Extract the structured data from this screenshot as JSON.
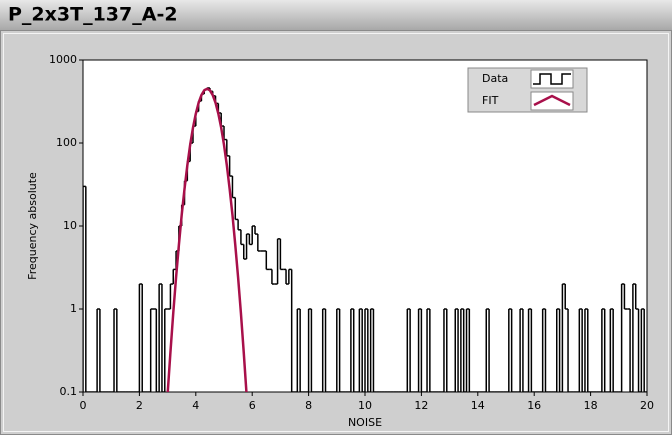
{
  "header": {
    "title": "P_2x3T_137_A-2"
  },
  "chart_data": {
    "type": "histogram",
    "xlabel": "NOISE",
    "ylabel": "Frequency absolute",
    "xlim": [
      0,
      20
    ],
    "xticks": [
      0,
      2,
      4,
      6,
      8,
      10,
      12,
      14,
      16,
      18,
      20
    ],
    "ylim": [
      0.1,
      1000
    ],
    "yticks": [
      0.1,
      1,
      10,
      100,
      1000
    ],
    "log_y": true,
    "legend": "top-right",
    "bins": [
      0,
      0.1,
      0.2,
      0.3,
      0.4,
      0.5,
      0.6,
      0.7,
      0.8,
      0.9,
      1,
      1.1,
      1.2,
      1.3,
      1.4,
      1.5,
      1.6,
      1.7,
      1.8,
      1.9,
      2,
      2.1,
      2.2,
      2.3,
      2.4,
      2.5,
      2.6,
      2.7,
      2.8,
      2.9,
      3,
      3.1,
      3.2,
      3.3,
      3.4,
      3.5,
      3.6,
      3.7,
      3.8,
      3.9,
      4,
      4.1,
      4.2,
      4.3,
      4.4,
      4.5,
      4.6,
      4.7,
      4.8,
      4.9,
      5,
      5.1,
      5.2,
      5.3,
      5.4,
      5.5,
      5.6,
      5.7,
      5.8,
      5.9,
      6,
      6.1,
      6.2,
      6.3,
      6.4,
      6.5,
      6.6,
      6.7,
      6.8,
      6.9,
      7,
      7.1,
      7.2,
      7.3,
      7.4,
      7.5,
      7.6,
      7.7,
      7.8,
      7.9,
      8,
      8.1,
      8.2,
      8.3,
      8.4,
      8.5,
      8.6,
      8.7,
      8.8,
      8.9,
      9,
      9.1,
      9.2,
      9.3,
      9.4,
      9.5,
      9.6,
      9.7,
      9.8,
      9.9,
      10,
      10.1,
      10.2,
      10.3,
      10.4,
      10.5,
      10.6,
      10.7,
      10.8,
      10.9,
      11,
      11.1,
      11.2,
      11.3,
      11.4,
      11.5,
      11.6,
      11.7,
      11.8,
      11.9,
      12,
      12.1,
      12.2,
      12.3,
      12.4,
      12.5,
      12.6,
      12.7,
      12.8,
      12.9,
      13,
      13.1,
      13.2,
      13.3,
      13.4,
      13.5,
      13.6,
      13.7,
      13.8,
      13.9,
      14,
      14.1,
      14.2,
      14.3,
      14.4,
      14.5,
      14.6,
      14.7,
      14.8,
      14.9,
      15,
      15.1,
      15.2,
      15.3,
      15.4,
      15.5,
      15.6,
      15.7,
      15.8,
      15.9,
      16,
      16.1,
      16.2,
      16.3,
      16.4,
      16.5,
      16.6,
      16.7,
      16.8,
      16.9,
      17,
      17.1,
      17.2,
      17.3,
      17.4,
      17.5,
      17.6,
      17.7,
      17.8,
      17.9,
      18,
      18.1,
      18.2,
      18.3,
      18.4,
      18.5,
      18.6,
      18.7,
      18.8,
      18.9,
      19,
      19.1,
      19.2,
      19.3,
      19.4,
      19.5,
      19.6,
      19.7,
      19.8,
      19.9,
      20
    ],
    "series": [
      {
        "name": "Data",
        "color": "#000000",
        "values": [
          30,
          0,
          0,
          0,
          0,
          1,
          0,
          0,
          0,
          0,
          0,
          1,
          0,
          0,
          0,
          0,
          0,
          0,
          0,
          0,
          2,
          0,
          0,
          0,
          1,
          1,
          0,
          2,
          0,
          1,
          1,
          2,
          3,
          5,
          10,
          18,
          35,
          60,
          100,
          160,
          240,
          320,
          390,
          440,
          460,
          420,
          370,
          300,
          230,
          160,
          110,
          70,
          40,
          22,
          12,
          9,
          6,
          4,
          8,
          6,
          10,
          8,
          5,
          5,
          5,
          3,
          3,
          2,
          2,
          7,
          3,
          3,
          2,
          3,
          0,
          0,
          1,
          0,
          0,
          0,
          1,
          0,
          0,
          0,
          0,
          1,
          0,
          0,
          0,
          0,
          1,
          0,
          0,
          0,
          0,
          1,
          0,
          0,
          1,
          0,
          1,
          0,
          1,
          0,
          0,
          0,
          0,
          0,
          0,
          0,
          0,
          0,
          0,
          0,
          0,
          1,
          0,
          0,
          0,
          1,
          0,
          0,
          1,
          0,
          0,
          0,
          0,
          0,
          1,
          0,
          0,
          0,
          1,
          0,
          1,
          0,
          1,
          0,
          0,
          0,
          0,
          0,
          0,
          1,
          0,
          0,
          0,
          0,
          0,
          0,
          0,
          1,
          0,
          0,
          0,
          1,
          0,
          0,
          1,
          0,
          0,
          0,
          0,
          1,
          0,
          0,
          0,
          0,
          1,
          0,
          2,
          1,
          0,
          0,
          0,
          0,
          1,
          0,
          1,
          0,
          0,
          0,
          0,
          0,
          1,
          0,
          0,
          1,
          0,
          0,
          0,
          2,
          1,
          1,
          0,
          2,
          1,
          0,
          1,
          0
        ]
      },
      {
        "name": "FIT",
        "color": "#a8104a",
        "x": [
          3,
          3.1,
          3.2,
          3.3,
          3.4,
          3.5,
          3.6,
          3.7,
          3.8,
          3.9,
          4,
          4.1,
          4.2,
          4.3,
          4.4,
          4.5,
          4.6,
          4.7,
          4.8,
          4.9,
          5,
          5.1,
          5.2,
          5.3,
          5.4,
          5.5,
          5.6,
          5.7,
          5.8
        ],
        "values": [
          0.094,
          0.3,
          0.89,
          2.4,
          5.9,
          13.6,
          28,
          54,
          95,
          153,
          225,
          305,
          378,
          431,
          450,
          431,
          378,
          305,
          225,
          153,
          95,
          54,
          28,
          13.6,
          5.9,
          2.4,
          0.89,
          0.3,
          0.094
        ]
      }
    ]
  }
}
